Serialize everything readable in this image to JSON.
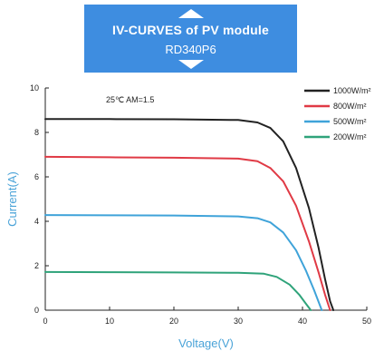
{
  "banner": {
    "title": "IV-CURVES of PV module",
    "subtitle": "RD340P6",
    "background_color": "#3e8de0",
    "up_icon": "triangle-up-icon",
    "down_icon": "triangle-down-icon"
  },
  "chart_data": {
    "type": "line",
    "annotation": "25℃  AM=1.5",
    "xlabel": "Voltage(V)",
    "ylabel": "Current(A)",
    "xlim": [
      0,
      50
    ],
    "ylim": [
      0,
      10
    ],
    "x_ticks": [
      "0",
      "10",
      "20",
      "30",
      "40",
      "50"
    ],
    "y_ticks": [
      "0",
      "2",
      "4",
      "6",
      "8",
      "10"
    ],
    "grid": false,
    "legend_position": "top-right",
    "series": [
      {
        "name": "1000W/m²",
        "color": "#222222",
        "points": [
          [
            0,
            8.6
          ],
          [
            10,
            8.6
          ],
          [
            20,
            8.59
          ],
          [
            30,
            8.56
          ],
          [
            33,
            8.45
          ],
          [
            35,
            8.2
          ],
          [
            37,
            7.6
          ],
          [
            39,
            6.4
          ],
          [
            41,
            4.6
          ],
          [
            42.5,
            2.8
          ],
          [
            43.5,
            1.4
          ],
          [
            44.3,
            0.4
          ],
          [
            44.8,
            0
          ]
        ]
      },
      {
        "name": "800W/m²",
        "color": "#e03a45",
        "points": [
          [
            0,
            6.9
          ],
          [
            10,
            6.88
          ],
          [
            20,
            6.86
          ],
          [
            30,
            6.82
          ],
          [
            33,
            6.7
          ],
          [
            35,
            6.4
          ],
          [
            37,
            5.8
          ],
          [
            39,
            4.7
          ],
          [
            41,
            3.1
          ],
          [
            42.5,
            1.7
          ],
          [
            43.5,
            0.7
          ],
          [
            44.3,
            0
          ]
        ]
      },
      {
        "name": "500W/m²",
        "color": "#3fa3d9",
        "points": [
          [
            0,
            4.28
          ],
          [
            10,
            4.27
          ],
          [
            20,
            4.26
          ],
          [
            30,
            4.22
          ],
          [
            33,
            4.14
          ],
          [
            35,
            3.95
          ],
          [
            37,
            3.5
          ],
          [
            39,
            2.7
          ],
          [
            40.5,
            1.8
          ],
          [
            41.8,
            0.9
          ],
          [
            43,
            0
          ]
        ]
      },
      {
        "name": "200W/m²",
        "color": "#2fa37a",
        "points": [
          [
            0,
            1.72
          ],
          [
            10,
            1.71
          ],
          [
            20,
            1.7
          ],
          [
            30,
            1.68
          ],
          [
            34,
            1.64
          ],
          [
            36,
            1.5
          ],
          [
            38,
            1.15
          ],
          [
            39.5,
            0.7
          ],
          [
            40.5,
            0.3
          ],
          [
            41.3,
            0
          ]
        ]
      }
    ]
  }
}
